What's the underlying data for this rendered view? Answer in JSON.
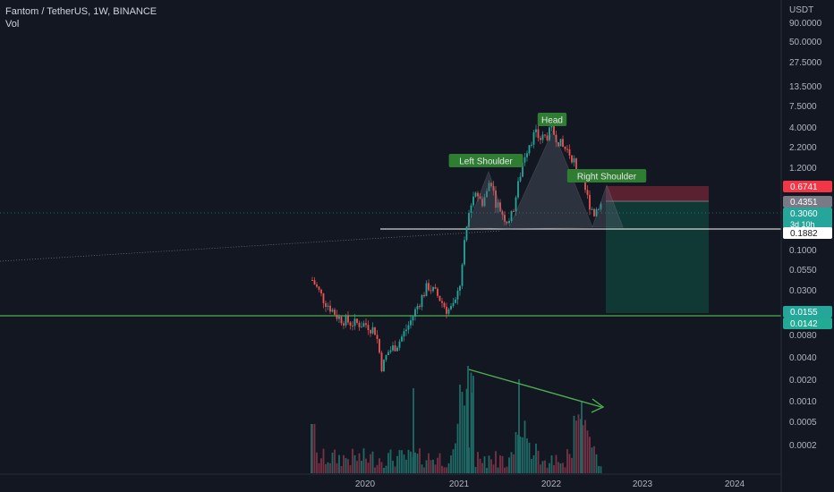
{
  "header": {
    "symbol_line": "Fantom / TetherUS, 1W, BINANCE",
    "volume_label": "Vol"
  },
  "colors": {
    "background": "#131722",
    "up": "#26a69a",
    "down": "#ef5350",
    "vol_up": "#1f6b65",
    "vol_down": "#7a3145",
    "accent_green": "#2e7d32",
    "support_line": "#4caf50",
    "label_text": "#e8e8e8",
    "axis_text": "#b2b5be",
    "pattern_fill": "#5d6477",
    "stop_zone": "#5e2233",
    "target_zone": "#103b38"
  },
  "chart_data": {
    "type": "candlestick",
    "title": "Fantom / TetherUS, 1W, BINANCE",
    "yscale": "log",
    "y_axis_unit": "USDT",
    "y_ticks": [
      "90.0000",
      "50.0000",
      "27.5000",
      "13.5000",
      "7.5000",
      "4.0000",
      "2.2000",
      "1.2000",
      "0.1000",
      "0.0550",
      "0.0300",
      "0.0080",
      "0.0040",
      "0.0020",
      "0.0010",
      "0.0005",
      "0.0002"
    ],
    "x_ticks": [
      "2020",
      "2021",
      "2022",
      "2023",
      "2024"
    ],
    "price_labels": [
      {
        "value": "0.6741",
        "kind": "stop"
      },
      {
        "value": "0.4351",
        "kind": "entry"
      },
      {
        "value": "0.3060",
        "sub": "3d 10h",
        "kind": "last"
      },
      {
        "value": "0.1882",
        "kind": "neckline"
      },
      {
        "value": "0.0155",
        "kind": "support"
      },
      {
        "value": "0.0142",
        "kind": "target"
      }
    ],
    "annotations": [
      {
        "text": "Left Shoulder",
        "kind": "shoulder"
      },
      {
        "text": "Head",
        "kind": "head"
      },
      {
        "text": "Right Shoulder",
        "kind": "shoulder"
      }
    ],
    "pattern": "head-and-shoulders",
    "volume_trend": "declining",
    "candles_desc": "weekly FTM/USDT from late 2019 to mid 2022: decline to ~0.002 in early 2020, rally to ~0.4 by early 2021, peak near 3.5 in late 2021, decline to ~0.3 in 2022"
  }
}
